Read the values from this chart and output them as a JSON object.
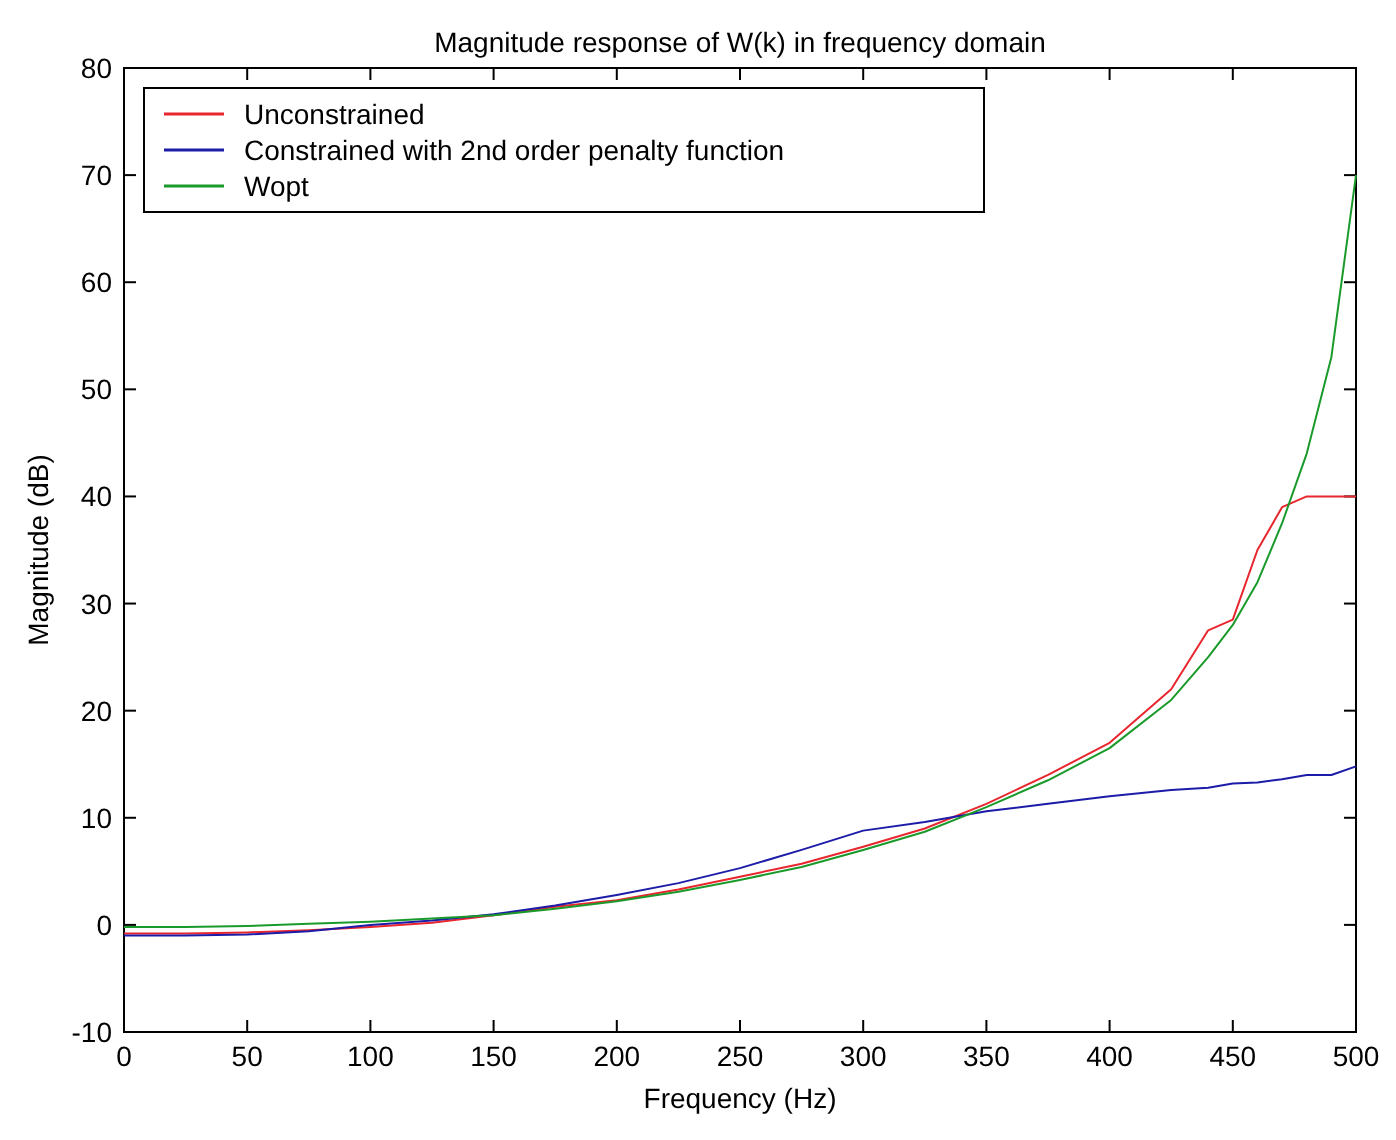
{
  "chart_data": {
    "type": "line",
    "title": "Magnitude response of W(k) in frequency domain",
    "xlabel": "Frequency (Hz)",
    "ylabel": "Magnitude (dB)",
    "x": [
      0,
      25,
      50,
      75,
      100,
      125,
      150,
      175,
      200,
      225,
      250,
      275,
      300,
      325,
      350,
      375,
      400,
      425,
      440,
      450,
      460,
      470,
      480,
      490,
      500
    ],
    "series": [
      {
        "name": "Unconstrained",
        "color": "#e8262e",
        "values": [
          -0.8,
          -0.8,
          -0.7,
          -0.5,
          -0.2,
          0.2,
          0.9,
          1.7,
          2.3,
          3.3,
          4.5,
          5.7,
          7.3,
          9,
          11.3,
          14,
          17,
          22,
          27.5,
          28.5,
          35,
          39,
          40,
          40,
          40
        ]
      },
      {
        "name": "Constrained with 2nd order penalty function",
        "color": "#1c1ca8",
        "values": [
          -1,
          -1,
          -0.9,
          -0.6,
          0,
          0.4,
          1,
          1.8,
          2.8,
          3.9,
          5.3,
          7,
          8.8,
          9.6,
          10.6,
          11.3,
          12,
          12.6,
          12.8,
          13.2,
          13.3,
          13.6,
          14,
          14,
          14.8
        ]
      },
      {
        "name": "Wopt",
        "color": "#1a9a2a",
        "values": [
          -0.2,
          -0.2,
          -0.1,
          0.1,
          0.3,
          0.6,
          0.9,
          1.5,
          2.2,
          3.1,
          4.2,
          5.4,
          7,
          8.7,
          11,
          13.5,
          16.5,
          21,
          25,
          28,
          32,
          37.5,
          44,
          53,
          70
        ]
      }
    ],
    "xlim": [
      0,
      500
    ],
    "xticks": [
      0,
      50,
      100,
      150,
      200,
      250,
      300,
      350,
      400,
      450,
      500
    ],
    "ylim": [
      -10,
      80
    ],
    "yticks": [
      -10,
      0,
      10,
      20,
      30,
      40,
      50,
      60,
      70,
      80
    ],
    "grid": false,
    "legend": "top left",
    "marker": "none",
    "line_style": "solid"
  }
}
